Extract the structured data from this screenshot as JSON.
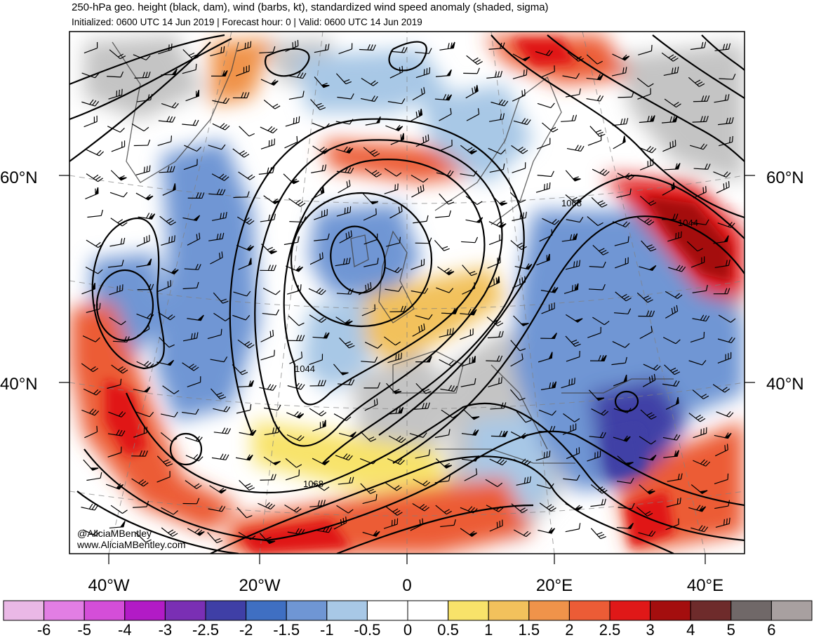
{
  "header": {
    "title": "250-hPa geo. height (black, dam), wind (barbs, kt), standardized wind speed anomaly (shaded, sigma)",
    "subtitle": "Initialized: 0600 UTC 14 Jun 2019 | Forecast hour: 0 | Valid: 0600 UTC 14 Jun 2019"
  },
  "map": {
    "lat_labels": {
      "left_60": "60°N",
      "right_60": "60°N",
      "left_40": "40°N",
      "right_40": "40°N"
    },
    "lon_labels": [
      "40°W",
      "20°W",
      "0",
      "20°E",
      "40°E"
    ],
    "contour_labels": [
      "1068",
      "1044",
      "1044",
      "1068"
    ],
    "credit": {
      "handle": "@AliciaMBentley",
      "site": "www.AliciaMBentley.com"
    },
    "colors": {
      "land": "#c8c8c8",
      "ocean": "#ffffff"
    }
  },
  "colorbar": {
    "labels": [
      "-6",
      "-5",
      "-4",
      "-3",
      "-2.5",
      "-2",
      "-1.5",
      "-1",
      "-0.5",
      "0",
      "0.5",
      "1",
      "1.5",
      "2",
      "2.5",
      "3",
      "4",
      "5",
      "6"
    ],
    "colors": [
      "#eab8e6",
      "#e27ee4",
      "#d44ed8",
      "#b21bc6",
      "#7a2fb4",
      "#3f3fa6",
      "#3f6fc2",
      "#6f96d4",
      "#a8c8e6",
      "#ffffff",
      "#ffffff",
      "#f8e36a",
      "#f2c15c",
      "#f0934a",
      "#ec5c36",
      "#e01818",
      "#a40e0e",
      "#6e2b2b",
      "#706868",
      "#a8a0a0"
    ]
  }
}
